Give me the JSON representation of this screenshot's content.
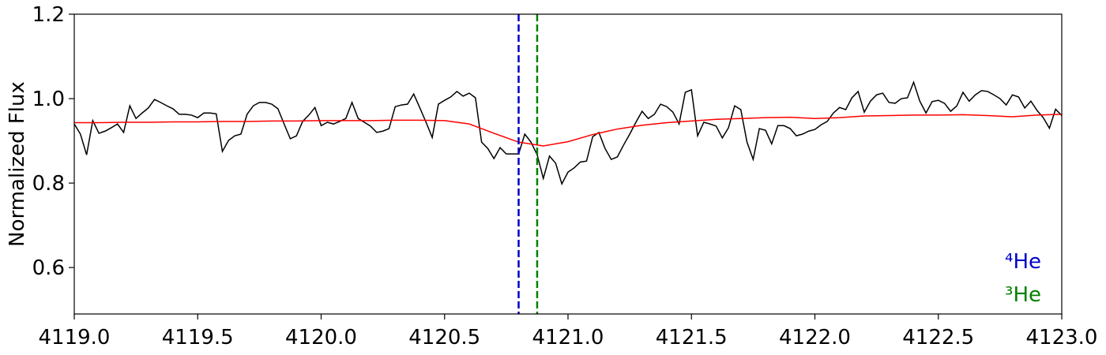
{
  "chart_data": {
    "type": "line",
    "ylabel": "Normalized Flux",
    "xlim": [
      4119,
      4123
    ],
    "ylim": [
      0.49,
      1.2
    ],
    "xticks": [
      {
        "value": 4119,
        "label": "4119.0"
      },
      {
        "value": 4119.5,
        "label": "4119.5"
      },
      {
        "value": 4120,
        "label": "4120.0"
      },
      {
        "value": 4120.5,
        "label": "4120.5"
      },
      {
        "value": 4121,
        "label": "4121.0"
      },
      {
        "value": 4121.5,
        "label": "4121.5"
      },
      {
        "value": 4122,
        "label": "4122.0"
      },
      {
        "value": 4122.5,
        "label": "4122.5"
      },
      {
        "value": 4123,
        "label": "4123.0"
      }
    ],
    "yticks": [
      0.6,
      0.8,
      {
        "value": 1,
        "label": "1.0"
      },
      {
        "value": 1.2,
        "label": "1.2"
      }
    ],
    "series": [
      {
        "color": "#000000",
        "x": [
          4119,
          4119.025,
          4119.05,
          4119.075,
          4119.1,
          4119.125,
          4119.15,
          4119.175,
          4119.2,
          4119.225,
          4119.25,
          4119.275,
          4119.3,
          4119.325,
          4119.35,
          4119.375,
          4119.4,
          4119.425,
          4119.45,
          4119.475,
          4119.5,
          4119.525,
          4119.55,
          4119.575,
          4119.6,
          4119.625,
          4119.65,
          4119.675,
          4119.7,
          4119.725,
          4119.75,
          4119.775,
          4119.8,
          4119.825,
          4119.85,
          4119.875,
          4119.9,
          4119.925,
          4119.95,
          4119.975,
          4120,
          4120.025,
          4120.05,
          4120.075,
          4120.1,
          4120.125,
          4120.15,
          4120.175,
          4120.2,
          4120.225,
          4120.25,
          4120.275,
          4120.3,
          4120.325,
          4120.35,
          4120.375,
          4120.4,
          4120.425,
          4120.45,
          4120.475,
          4120.5,
          4120.525,
          4120.55,
          4120.575,
          4120.6,
          4120.625,
          4120.65,
          4120.675,
          4120.7,
          4120.725,
          4120.75,
          4120.775,
          4120.8,
          4120.825,
          4120.85,
          4120.875,
          4120.9,
          4120.925,
          4120.95,
          4120.975,
          4121,
          4121.025,
          4121.05,
          4121.075,
          4121.1,
          4121.125,
          4121.15,
          4121.175,
          4121.2,
          4121.225,
          4121.25,
          4121.275,
          4121.3,
          4121.325,
          4121.35,
          4121.375,
          4121.4,
          4121.425,
          4121.45,
          4121.475,
          4121.5,
          4121.525,
          4121.55,
          4121.575,
          4121.6,
          4121.625,
          4121.65,
          4121.675,
          4121.7,
          4121.725,
          4121.75,
          4121.775,
          4121.8,
          4121.825,
          4121.85,
          4121.875,
          4121.9,
          4121.925,
          4121.95,
          4121.975,
          4122,
          4122.025,
          4122.05,
          4122.075,
          4122.1,
          4122.125,
          4122.15,
          4122.175,
          4122.2,
          4122.225,
          4122.25,
          4122.275,
          4122.3,
          4122.325,
          4122.35,
          4122.375,
          4122.4,
          4122.425,
          4122.45,
          4122.475,
          4122.5,
          4122.525,
          4122.55,
          4122.575,
          4122.6,
          4122.625,
          4122.65,
          4122.675,
          4122.7,
          4122.725,
          4122.75,
          4122.775,
          4122.8,
          4122.825,
          4122.85,
          4122.875,
          4122.9,
          4122.925,
          4122.95,
          4122.975,
          4123
        ],
        "values": [
          0.94,
          0.916,
          0.867,
          0.948,
          0.918,
          0.923,
          0.931,
          0.94,
          0.92,
          0.983,
          0.953,
          0.966,
          0.978,
          0.998,
          0.991,
          0.983,
          0.976,
          0.963,
          0.963,
          0.961,
          0.955,
          0.966,
          0.966,
          0.964,
          0.875,
          0.901,
          0.912,
          0.916,
          0.963,
          0.983,
          0.991,
          0.991,
          0.987,
          0.976,
          0.94,
          0.905,
          0.912,
          0.946,
          0.961,
          0.979,
          0.936,
          0.944,
          0.94,
          0.946,
          0.953,
          0.991,
          0.953,
          0.944,
          0.935,
          0.92,
          0.923,
          0.929,
          0.981,
          0.985,
          0.987,
          1.011,
          0.978,
          0.944,
          0.908,
          0.987,
          0.996,
          1.004,
          1.017,
          1.006,
          1.013,
          1.002,
          0.897,
          0.882,
          0.858,
          0.884,
          0.869,
          0.869,
          0.869,
          0.916,
          0.897,
          0.867,
          0.811,
          0.864,
          0.847,
          0.798,
          0.826,
          0.836,
          0.85,
          0.852,
          0.91,
          0.92,
          0.882,
          0.856,
          0.862,
          0.89,
          0.916,
          0.944,
          0.97,
          0.953,
          0.963,
          0.987,
          0.981,
          0.968,
          0.94,
          1.015,
          1.021,
          0.912,
          0.944,
          0.94,
          0.935,
          0.907,
          0.931,
          0.983,
          0.974,
          0.897,
          0.856,
          0.929,
          0.925,
          0.893,
          0.936,
          0.936,
          0.929,
          0.912,
          0.916,
          0.923,
          0.927,
          0.938,
          0.946,
          0.966,
          0.979,
          0.974,
          1.002,
          1.017,
          0.968,
          0.994,
          1.009,
          1.013,
          0.991,
          0.989,
          1.0,
          1.002,
          1.039,
          0.994,
          0.966,
          0.993,
          0.996,
          0.989,
          0.97,
          0.983,
          1.015,
          0.994,
          1.009,
          1.019,
          1.017,
          1.009,
          1.0,
          0.985,
          1.009,
          1.004,
          0.978,
          0.994,
          0.972,
          0.955,
          0.93,
          0.975,
          0.96
        ]
      },
      {
        "color": "#ff0000",
        "x": [
          4119,
          4119.1,
          4119.2,
          4119.3,
          4119.4,
          4119.5,
          4119.6,
          4119.7,
          4119.8,
          4119.9,
          4120,
          4120.1,
          4120.2,
          4120.3,
          4120.4,
          4120.5,
          4120.6,
          4120.7,
          4120.8,
          4120.9,
          4121,
          4121.1,
          4121.2,
          4121.3,
          4121.4,
          4121.5,
          4121.6,
          4121.7,
          4121.8,
          4121.9,
          4122,
          4122.1,
          4122.2,
          4122.3,
          4122.4,
          4122.5,
          4122.6,
          4122.7,
          4122.8,
          4122.9,
          4123
        ],
        "values": [
          0.943,
          0.943,
          0.944,
          0.944,
          0.945,
          0.945,
          0.946,
          0.946,
          0.947,
          0.947,
          0.948,
          0.948,
          0.948,
          0.949,
          0.949,
          0.948,
          0.94,
          0.918,
          0.897,
          0.888,
          0.898,
          0.915,
          0.928,
          0.937,
          0.943,
          0.947,
          0.951,
          0.953,
          0.955,
          0.956,
          0.953,
          0.955,
          0.959,
          0.96,
          0.961,
          0.961,
          0.962,
          0.96,
          0.957,
          0.961,
          0.963
        ]
      }
    ],
    "vlines": [
      {
        "x": 4120.8,
        "color": "#0000cc",
        "label": "⁴He"
      },
      {
        "x": 4120.875,
        "color": "#008000",
        "label": "³He"
      }
    ]
  }
}
